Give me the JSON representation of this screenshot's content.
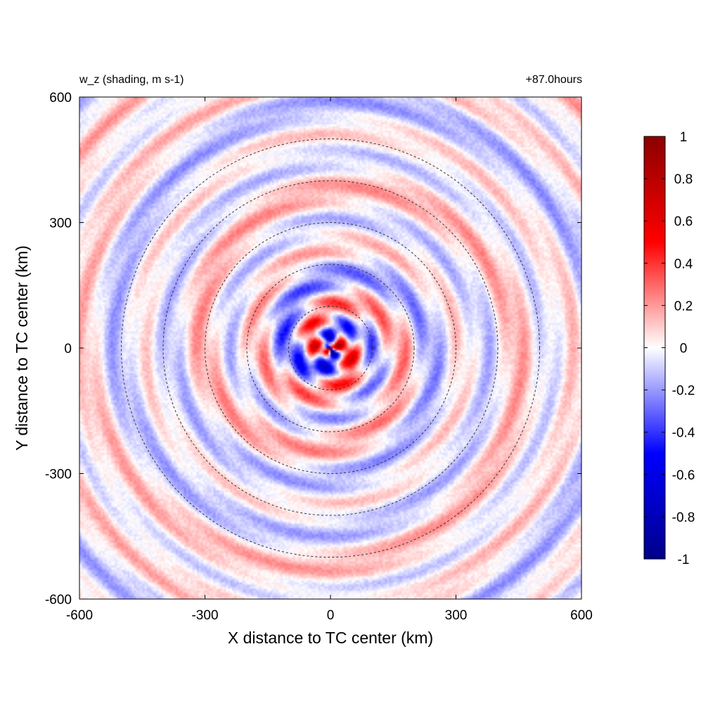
{
  "chart_data": {
    "type": "heatmap",
    "title_left": "w_z (shading, m s-1)",
    "title_right": "+87.0hours",
    "xlabel": "X distance to TC center (km)",
    "ylabel": "Y distance to TC center (km)",
    "xlim": [
      -600,
      600
    ],
    "ylim": [
      -600,
      600
    ],
    "xticks": [
      "-600",
      "-300",
      "0",
      "300",
      "600"
    ],
    "yticks": [
      "-600",
      "-300",
      "0",
      "300",
      "600"
    ],
    "contour_radii_km": [
      100,
      200,
      300,
      400,
      500
    ],
    "contour_style": "dashed",
    "colorbar": {
      "range": [
        -1,
        1
      ],
      "ticks": [
        "1",
        "0.8",
        "0.6",
        "0.4",
        "0.2",
        "0",
        "-0.2",
        "-0.4",
        "-0.6",
        "-0.8",
        "-1"
      ],
      "colors": [
        "#00008B",
        "#0000FF",
        "#FFFFFF",
        "#FF0000",
        "#8B0000"
      ],
      "placement": "right"
    },
    "field": {
      "description_units": "m s-1",
      "pattern": "spiral rainbands",
      "center_amplitude": 0.9,
      "outer_amplitude": 0.15
    }
  }
}
